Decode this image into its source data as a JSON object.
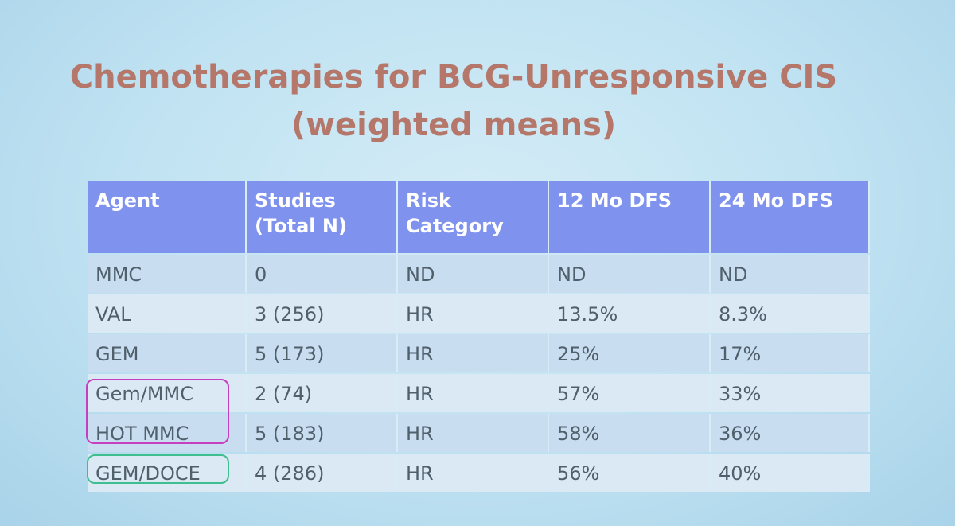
{
  "title": {
    "line1": "Chemotherapies for BCG-Unresponsive CIS",
    "line2": "(weighted means)"
  },
  "table": {
    "header": [
      "Agent",
      "Studies (Total N)",
      "Risk Category",
      "12 Mo DFS",
      "24 Mo DFS"
    ],
    "rows": [
      [
        "MMC",
        "0",
        "ND",
        "ND",
        "ND"
      ],
      [
        "VAL",
        "3 (256)",
        "HR",
        "13.5%",
        "8.3%"
      ],
      [
        "GEM",
        "5 (173)",
        "HR",
        "25%",
        "17%"
      ],
      [
        "Gem/MMC",
        "2 (74)",
        "HR",
        "57%",
        "33%"
      ],
      [
        "HOT MMC",
        "5 (183)",
        "HR",
        "58%",
        "36%"
      ],
      [
        "GEM/DOCE",
        "4 (286)",
        "HR",
        "56%",
        "40%"
      ]
    ]
  }
}
